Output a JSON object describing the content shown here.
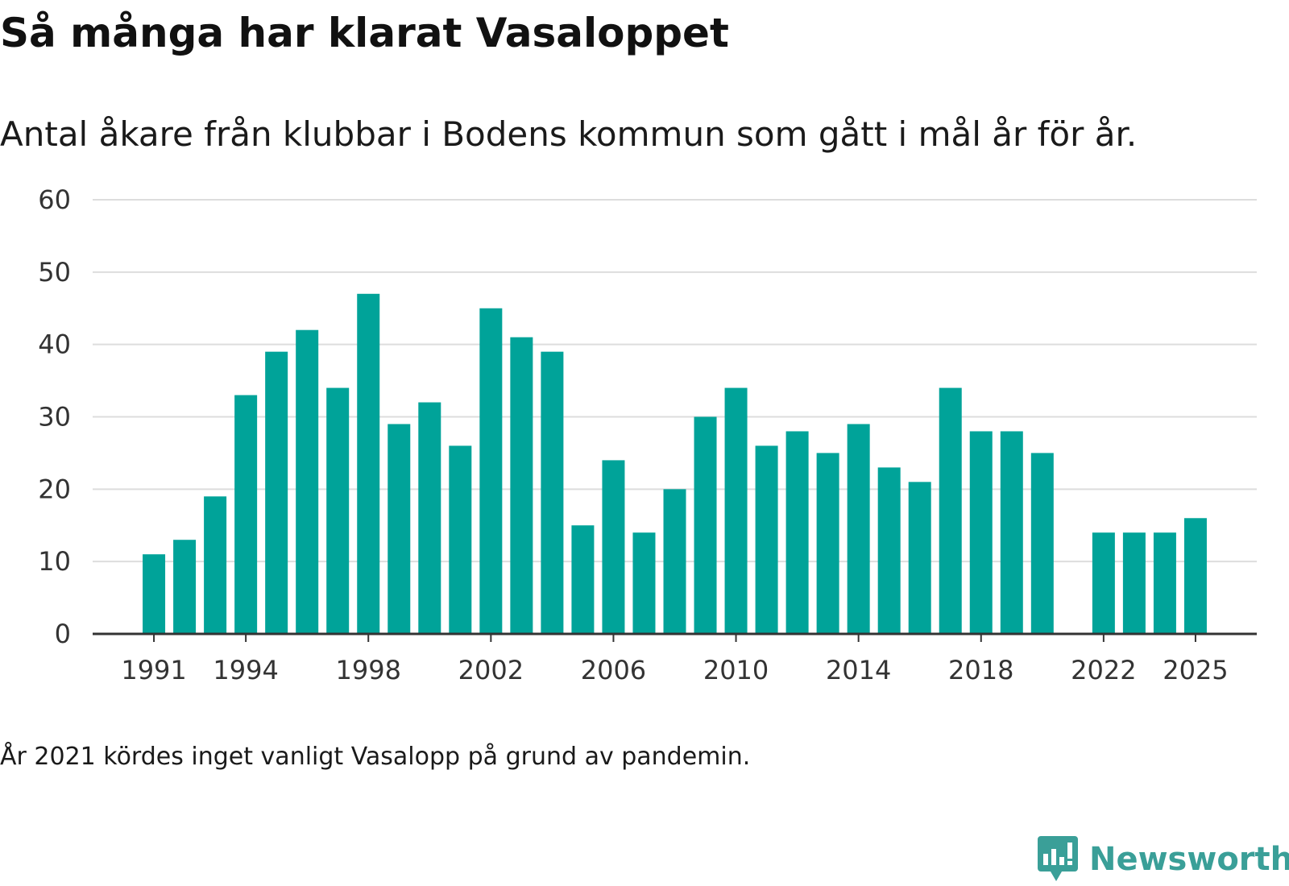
{
  "header": {
    "title": "Så många har klarat Vasaloppet",
    "subtitle": "Antal åkare från klubbar i Bodens kommun som gått i mål år för år."
  },
  "footer": {
    "note": "År 2021 kördes inget vanligt Vasalopp på grund av pandemin.",
    "brand": "Newsworthy",
    "brand_icon": "newsworthy-logo-icon"
  },
  "colors": {
    "bar": "#00a399",
    "grid": "#dddddd",
    "axis": "#333333",
    "brand": "#3a9f98"
  },
  "chart_data": {
    "type": "bar",
    "title": "Så många har klarat Vasaloppet",
    "subtitle": "Antal åkare från klubbar i Bodens kommun som gått i mål år för år.",
    "xlabel": "",
    "ylabel": "",
    "ylim": [
      0,
      60
    ],
    "yticks": [
      0,
      10,
      20,
      30,
      40,
      50,
      60
    ],
    "xlim": [
      1989,
      2027
    ],
    "xticks": [
      1991,
      1994,
      1998,
      2002,
      2006,
      2010,
      2014,
      2018,
      2022,
      2025
    ],
    "grid": true,
    "categories": [
      1991,
      1992,
      1993,
      1994,
      1995,
      1996,
      1997,
      1998,
      1999,
      2000,
      2001,
      2002,
      2003,
      2004,
      2005,
      2006,
      2007,
      2008,
      2009,
      2010,
      2011,
      2012,
      2013,
      2014,
      2015,
      2016,
      2017,
      2018,
      2019,
      2020,
      2022,
      2023,
      2024,
      2025
    ],
    "values": [
      11,
      13,
      19,
      33,
      39,
      42,
      34,
      47,
      29,
      32,
      26,
      45,
      41,
      39,
      15,
      24,
      14,
      20,
      30,
      34,
      26,
      28,
      25,
      29,
      23,
      21,
      34,
      28,
      28,
      25,
      14,
      14,
      14,
      16
    ]
  }
}
